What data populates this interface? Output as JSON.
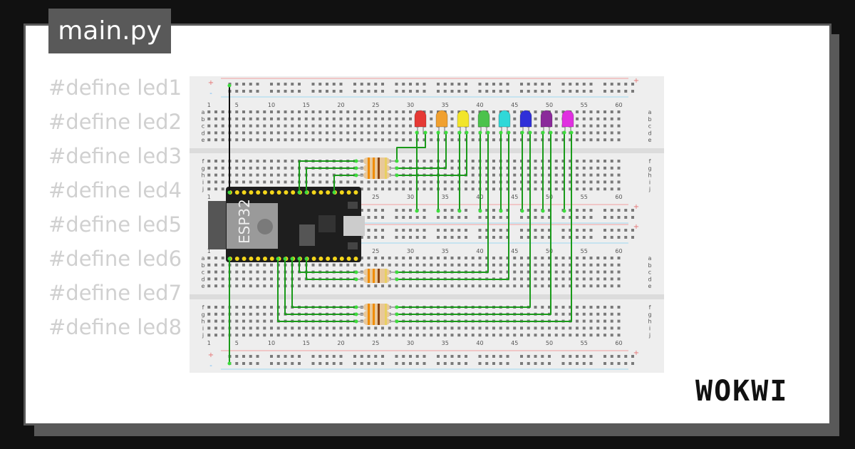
{
  "editor": {
    "file_tab": "main.py",
    "code_lines": [
      "#define led1",
      "#define led2",
      "#define led3",
      "#define led4",
      "#define led5",
      "#define led6",
      "#define led7",
      "#define led8"
    ]
  },
  "breadboard": {
    "column_labels": [
      "1",
      "5",
      "10",
      "15",
      "20",
      "25",
      "30",
      "35",
      "40",
      "45",
      "50",
      "55",
      "60"
    ],
    "row_labels_top": [
      "a",
      "b",
      "c",
      "d",
      "e"
    ],
    "row_labels_bottom": [
      "f",
      "g",
      "h",
      "i",
      "j"
    ],
    "rail_plus": "+",
    "rail_minus": "-"
  },
  "esp32": {
    "label": "ESP32"
  },
  "leds": [
    {
      "color": "#e53935"
    },
    {
      "color": "#f0a030"
    },
    {
      "color": "#f2e52a"
    },
    {
      "color": "#4cc24c"
    },
    {
      "color": "#30d8d8"
    },
    {
      "color": "#3030d8"
    },
    {
      "color": "#8a2a9a"
    },
    {
      "color": "#e030e0"
    }
  ],
  "colors": {
    "wire": "#1a9a1a",
    "background": "#111111",
    "card": "#ffffff"
  },
  "brand": {
    "logo": "WOKWI"
  }
}
